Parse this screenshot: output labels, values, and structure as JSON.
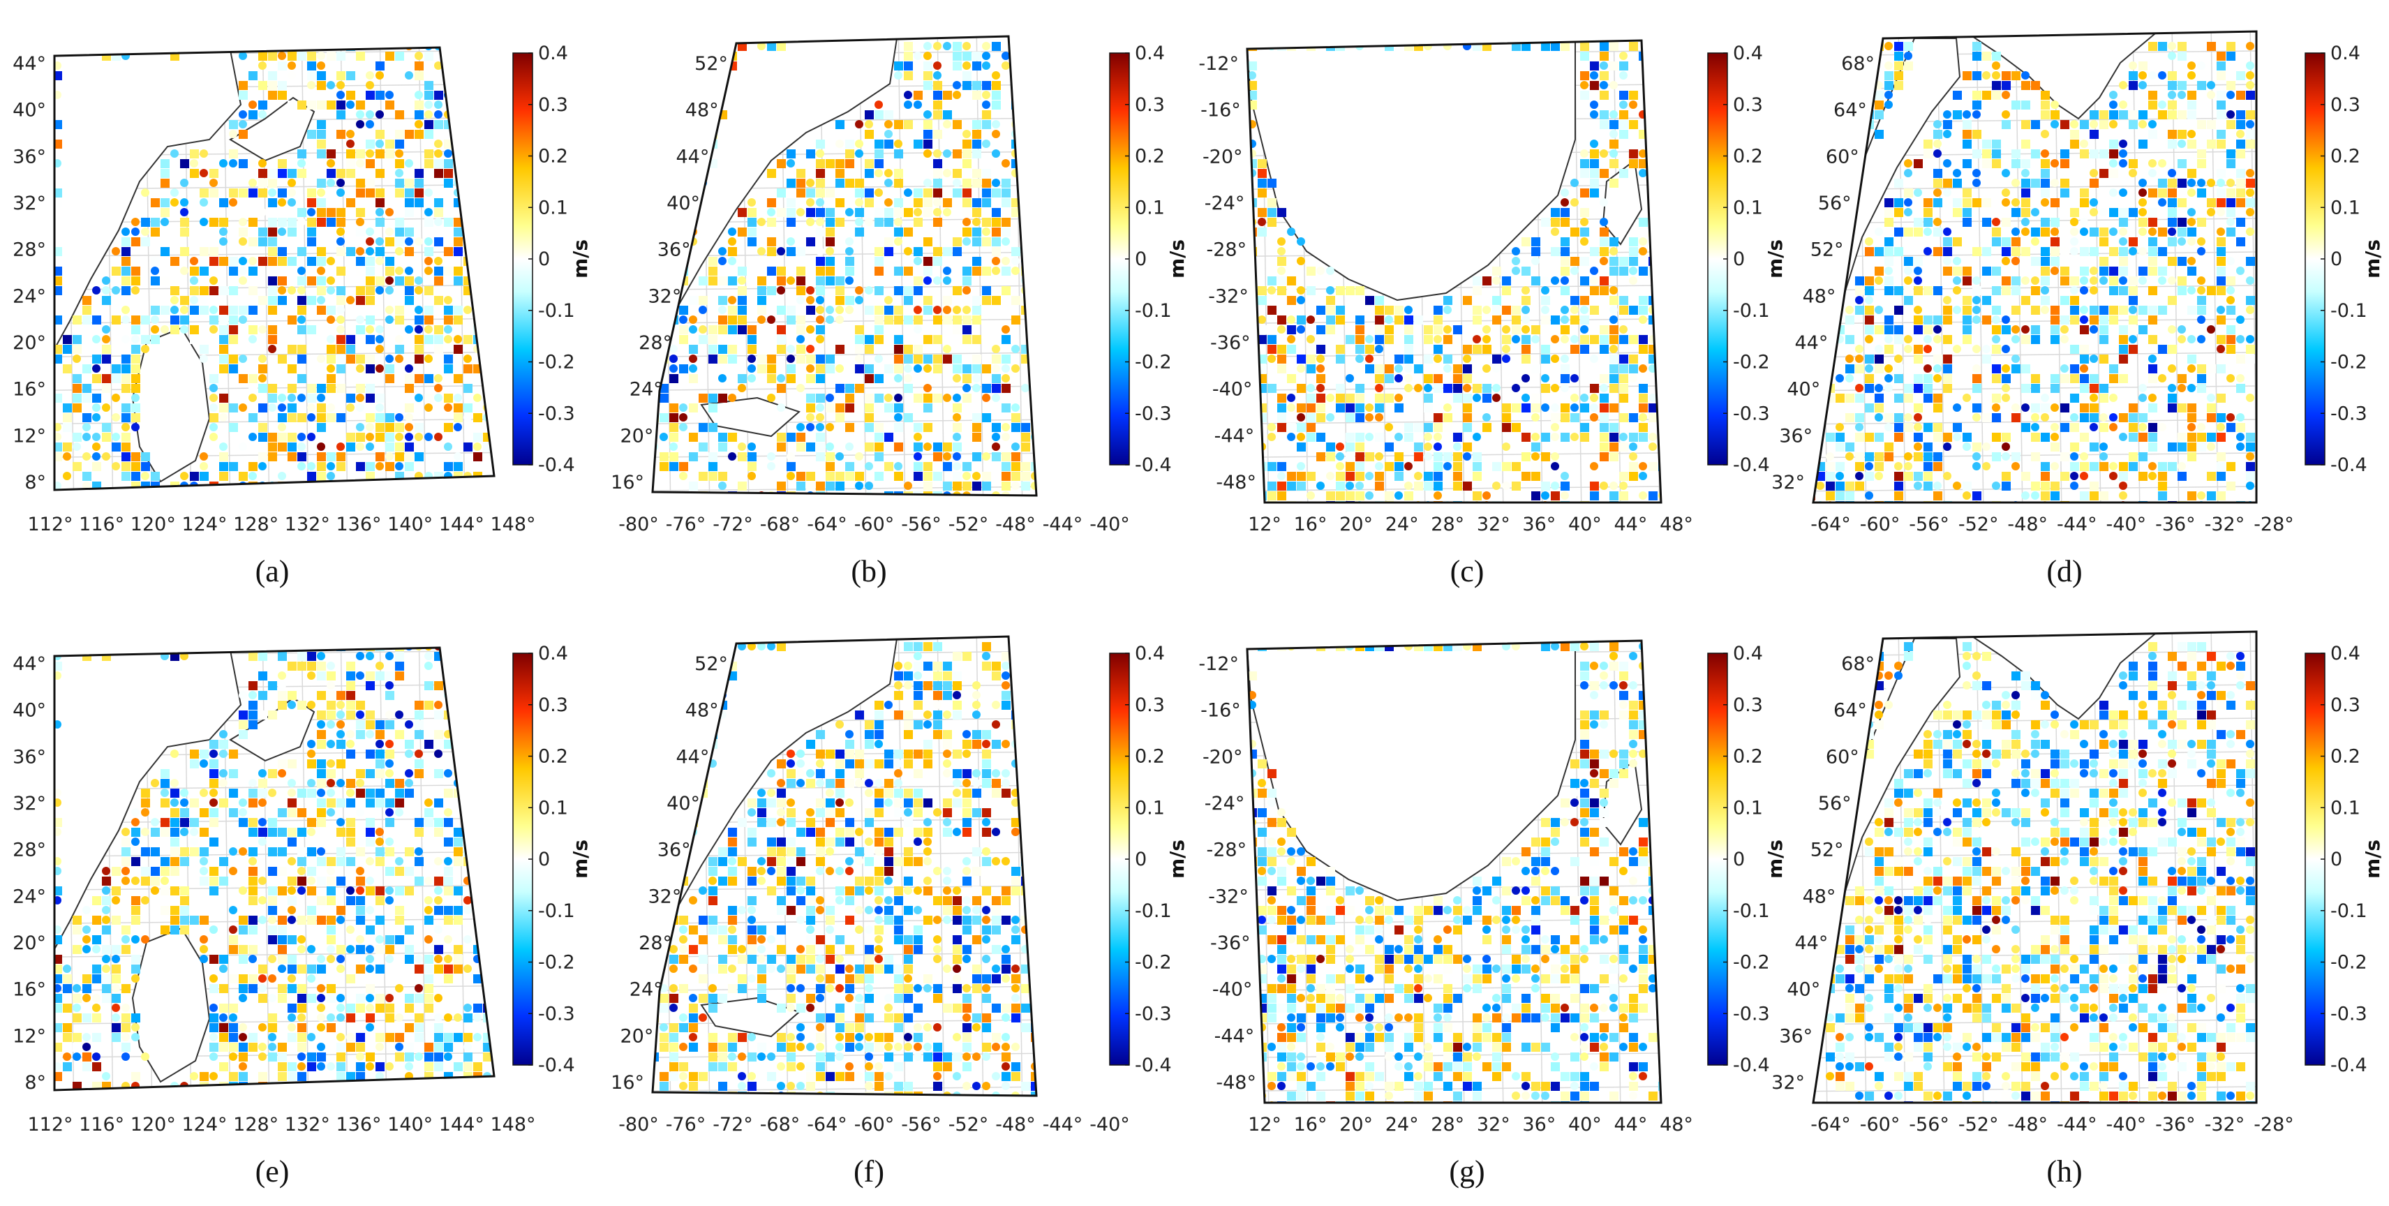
{
  "figure": {
    "colorbar": {
      "unit": "m/s",
      "ticks": [
        "0.4",
        "0.3",
        "0.2",
        "0.1",
        "0",
        "-0.1",
        "-0.2",
        "-0.3",
        "-0.4"
      ],
      "min": -0.4,
      "max": 0.4
    },
    "panels": [
      {
        "id": "a",
        "label": "(a)",
        "region": "northwest-pacific",
        "lat_ticks": [
          "44°",
          "40°",
          "36°",
          "32°",
          "28°",
          "24°",
          "20°",
          "16°",
          "12°",
          "8°"
        ],
        "lon_ticks": [
          "112°",
          "116°",
          "120°",
          "124°",
          "128°",
          "132°",
          "136°",
          "140°",
          "144°",
          "148°"
        ]
      },
      {
        "id": "b",
        "label": "(b)",
        "region": "northwest-atlantic",
        "lat_ticks": [
          "52°",
          "48°",
          "44°",
          "40°",
          "36°",
          "32°",
          "28°",
          "24°",
          "20°",
          "16°"
        ],
        "lon_ticks": [
          "-80°",
          "-76°",
          "-72°",
          "-68°",
          "-64°",
          "-60°",
          "-56°",
          "-52°",
          "-48°",
          "-44°",
          "-40°"
        ]
      },
      {
        "id": "c",
        "label": "(c)",
        "region": "southern-africa",
        "lat_ticks": [
          "-12°",
          "-16°",
          "-20°",
          "-24°",
          "-28°",
          "-32°",
          "-36°",
          "-40°",
          "-44°",
          "-48°"
        ],
        "lon_ticks": [
          "12°",
          "16°",
          "20°",
          "24°",
          "28°",
          "32°",
          "36°",
          "40°",
          "44°",
          "48°"
        ]
      },
      {
        "id": "d",
        "label": "(d)",
        "region": "north-atlantic-subpolar",
        "lat_ticks": [
          "68°",
          "64°",
          "60°",
          "56°",
          "52°",
          "48°",
          "44°",
          "40°",
          "36°",
          "32°"
        ],
        "lon_ticks": [
          "-64°",
          "-60°",
          "-56°",
          "-52°",
          "-48°",
          "-44°",
          "-40°",
          "-36°",
          "-32°",
          "-28°"
        ]
      },
      {
        "id": "e",
        "label": "(e)",
        "region": "northwest-pacific",
        "lat_ticks": [
          "44°",
          "40°",
          "36°",
          "32°",
          "28°",
          "24°",
          "20°",
          "16°",
          "12°",
          "8°"
        ],
        "lon_ticks": [
          "112°",
          "116°",
          "120°",
          "124°",
          "128°",
          "132°",
          "136°",
          "140°",
          "144°",
          "148°"
        ]
      },
      {
        "id": "f",
        "label": "(f)",
        "region": "northwest-atlantic",
        "lat_ticks": [
          "52°",
          "48°",
          "44°",
          "40°",
          "36°",
          "32°",
          "28°",
          "24°",
          "20°",
          "16°"
        ],
        "lon_ticks": [
          "-80°",
          "-76°",
          "-72°",
          "-68°",
          "-64°",
          "-60°",
          "-56°",
          "-52°",
          "-48°",
          "-44°",
          "-40°"
        ]
      },
      {
        "id": "g",
        "label": "(g)",
        "region": "southern-africa",
        "lat_ticks": [
          "-12°",
          "-16°",
          "-20°",
          "-24°",
          "-28°",
          "-32°",
          "-36°",
          "-40°",
          "-44°",
          "-48°"
        ],
        "lon_ticks": [
          "12°",
          "16°",
          "20°",
          "24°",
          "28°",
          "32°",
          "36°",
          "40°",
          "44°",
          "48°"
        ]
      },
      {
        "id": "h",
        "label": "(h)",
        "region": "north-atlantic-subpolar",
        "lat_ticks": [
          "68°",
          "64°",
          "60°",
          "56°",
          "52°",
          "48°",
          "44°",
          "40°",
          "36°",
          "32°"
        ],
        "lon_ticks": [
          "-64°",
          "-60°",
          "-56°",
          "-52°",
          "-48°",
          "-44°",
          "-40°",
          "-36°",
          "-32°",
          "-28°"
        ]
      }
    ]
  }
}
